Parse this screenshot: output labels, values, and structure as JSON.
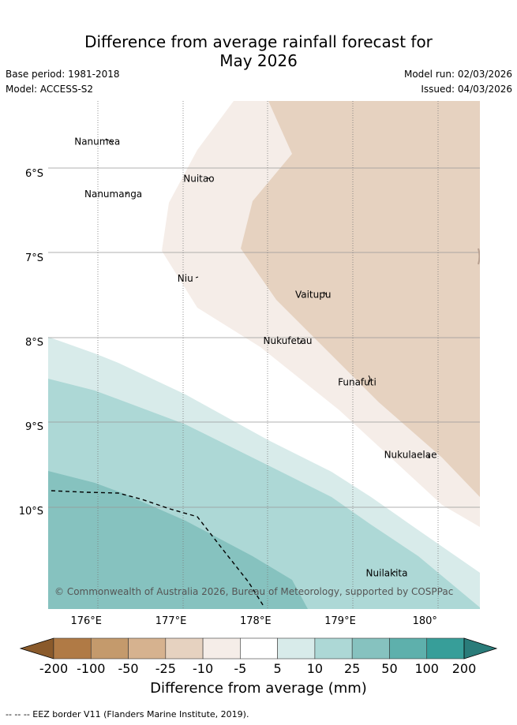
{
  "title": {
    "line1": "Difference from average rainfall forecast for",
    "line2": "May 2026"
  },
  "meta": {
    "base_period": "Base period: 1981-2018",
    "model": "Model: ACCESS-S2",
    "model_run": "Model run: 02/03/2026",
    "issued": "Issued: 04/03/2026"
  },
  "map": {
    "lon_range": [
      175.55,
      180.65
    ],
    "lat_range": [
      -11.17,
      -5.15
    ],
    "lon_ticks": [
      {
        "value": 176,
        "label": "176°E"
      },
      {
        "value": 177,
        "label": "177°E"
      },
      {
        "value": 178,
        "label": "178°E"
      },
      {
        "value": 179,
        "label": "179°E"
      },
      {
        "value": 180,
        "label": "180°"
      }
    ],
    "lat_ticks": [
      {
        "value": -6,
        "label": "6°S"
      },
      {
        "value": -7,
        "label": "7°S"
      },
      {
        "value": -8,
        "label": "8°S"
      },
      {
        "value": -9,
        "label": "9°S"
      },
      {
        "value": -10,
        "label": "10°S"
      }
    ],
    "places": [
      {
        "name": "Nanumea",
        "lon": 176.13,
        "lat": -5.67
      },
      {
        "name": "Nuitao",
        "lon": 177.33,
        "lat": -6.11
      },
      {
        "name": "Nanumanga",
        "lon": 176.32,
        "lat": -6.29
      },
      {
        "name": "Niu",
        "lon": 177.17,
        "lat": -7.29
      },
      {
        "name": "Vaitupu",
        "lon": 178.68,
        "lat": -7.48
      },
      {
        "name": "Nukufetau",
        "lon": 178.38,
        "lat": -8.03
      },
      {
        "name": "Funafuti",
        "lon": 179.2,
        "lat": -8.52
      },
      {
        "name": "Nukulaelae",
        "lon": 179.83,
        "lat": -9.38
      },
      {
        "name": "Nuilakita",
        "lon": 179.55,
        "lat": -10.78
      }
    ],
    "copyright": "© Commonwealth of Australia 2026, Bureau of Meteorology, supported by COSPPac"
  },
  "colorbar": {
    "title": "Difference from average (mm)",
    "tick_labels": [
      "-200",
      "-100",
      "-50",
      "-25",
      "-10",
      "-5",
      "5",
      "10",
      "25",
      "50",
      "100",
      "200"
    ],
    "colors": [
      "#8a5a2b",
      "#b07a45",
      "#c49a6c",
      "#d6b28f",
      "#e6d2c0",
      "#f5ede8",
      "#ffffff",
      "#d8ebea",
      "#add8d6",
      "#86c2bf",
      "#5eb0ac",
      "#379e99",
      "#2a7c7a"
    ]
  },
  "footer": "-- -- -- EEZ border V11 (Flanders Marine Institute, 2019)."
}
